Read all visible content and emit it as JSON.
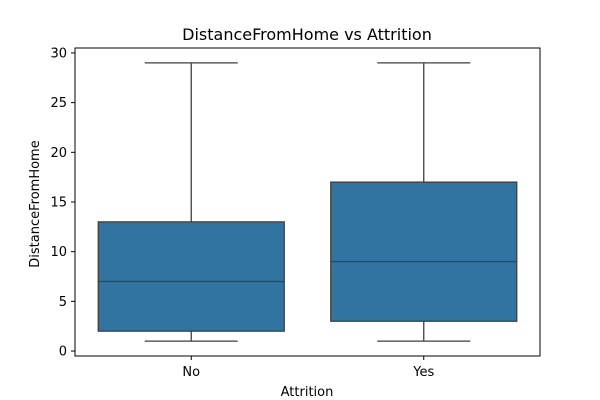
{
  "chart_data": {
    "type": "box",
    "title": "DistanceFromHome vs Attrition",
    "xlabel": "Attrition",
    "ylabel": "DistanceFromHome",
    "categories": [
      "No",
      "Yes"
    ],
    "boxes": [
      {
        "category": "No",
        "whisker_low": 1,
        "q1": 2,
        "median": 7,
        "q3": 13,
        "whisker_high": 29
      },
      {
        "category": "Yes",
        "whisker_low": 1,
        "q1": 3,
        "median": 9,
        "q3": 17,
        "whisker_high": 29
      }
    ],
    "ylim": [
      -0.5,
      30.5
    ],
    "yticks": [
      0,
      5,
      10,
      15,
      20,
      25,
      30
    ],
    "grid": false,
    "colors": {
      "box_fill": "#3274a1",
      "line": "#3f3f3f",
      "axis": "#000000"
    }
  }
}
